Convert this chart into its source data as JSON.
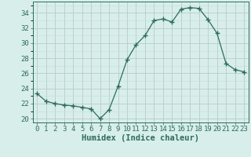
{
  "x": [
    0,
    1,
    2,
    3,
    4,
    5,
    6,
    7,
    8,
    9,
    10,
    11,
    12,
    13,
    14,
    15,
    16,
    17,
    18,
    19,
    20,
    21,
    22,
    23
  ],
  "y": [
    23.3,
    22.3,
    22.0,
    21.8,
    21.7,
    21.5,
    21.3,
    20.0,
    21.2,
    24.3,
    27.8,
    29.8,
    31.0,
    33.0,
    33.2,
    32.8,
    34.5,
    34.7,
    34.6,
    33.1,
    31.3,
    27.3,
    26.5,
    26.2
  ],
  "line_color": "#2d6b5e",
  "marker": "+",
  "marker_size": 4,
  "bg_color": "#d8eeea",
  "grid_minor_color": "#c4ddd8",
  "grid_major_color": "#b8ccc8",
  "xlabel": "Humidex (Indice chaleur)",
  "ylim": [
    19.5,
    35.5
  ],
  "xlim": [
    -0.5,
    23.5
  ],
  "yticks": [
    20,
    22,
    24,
    26,
    28,
    30,
    32,
    34
  ],
  "xticks": [
    0,
    1,
    2,
    3,
    4,
    5,
    6,
    7,
    8,
    9,
    10,
    11,
    12,
    13,
    14,
    15,
    16,
    17,
    18,
    19,
    20,
    21,
    22,
    23
  ],
  "tick_color": "#2d6b5e",
  "label_fontsize": 6.5,
  "xlabel_fontsize": 7.5
}
